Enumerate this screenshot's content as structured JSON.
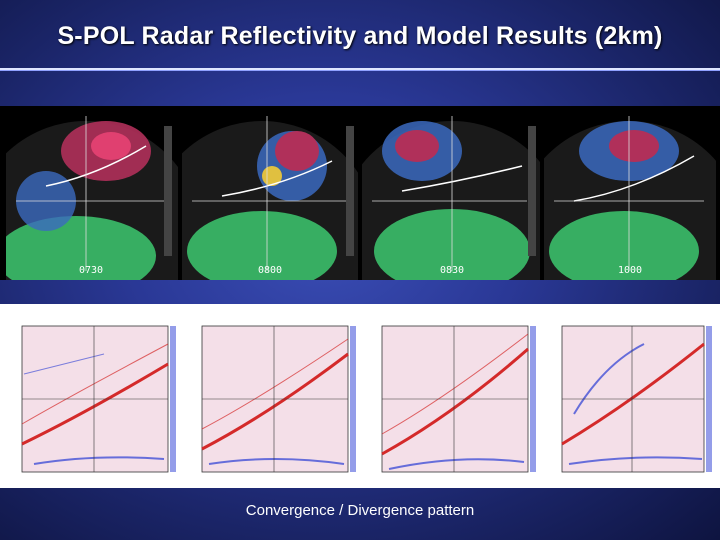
{
  "slide": {
    "title": "S-POL Radar Reflectivity and Model Results (2km)",
    "caption": "Convergence / Divergence pattern"
  },
  "radar_panels": [
    {
      "time_label": "0730"
    },
    {
      "time_label": "0800"
    },
    {
      "time_label": "0830"
    },
    {
      "time_label": "1000"
    }
  ],
  "colors": {
    "background_top": "#3a4db5",
    "background_edge": "#0e1440",
    "convergence": "#d42a2a",
    "divergence": "#2a3cd4",
    "radar_clutter": "#3bbf6a",
    "radar_core": "#b0305a"
  }
}
